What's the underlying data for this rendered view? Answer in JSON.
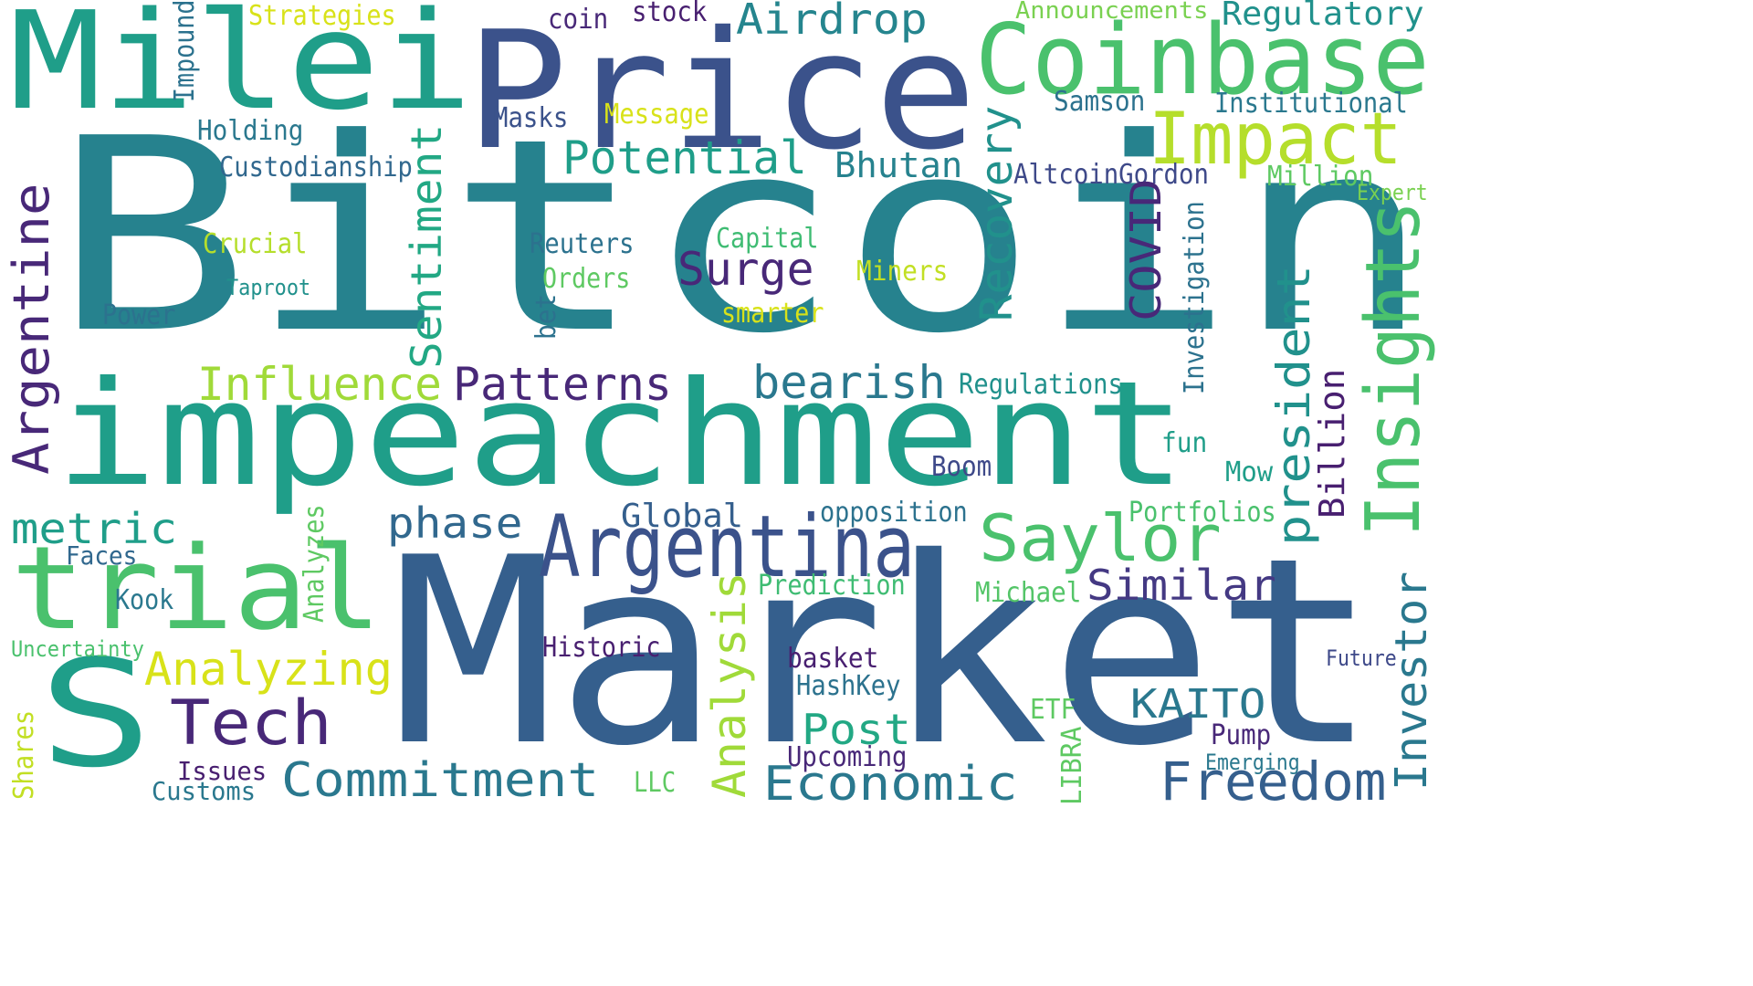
{
  "words": [
    {
      "key": "bitcoin",
      "text": "Bitcoin",
      "color": "#26828e",
      "vertical": false
    },
    {
      "key": "market",
      "text": "Market",
      "color": "#355f8d",
      "vertical": false
    },
    {
      "key": "impeachment",
      "text": "impeachment",
      "color": "#1f9e89",
      "vertical": false
    },
    {
      "key": "price",
      "text": "Price",
      "color": "#3b528b",
      "vertical": false
    },
    {
      "key": "milei",
      "text": "Milei",
      "color": "#1f9e89",
      "vertical": false
    },
    {
      "key": "coinbase",
      "text": "Coinbase",
      "color": "#4ac16d",
      "vertical": false
    },
    {
      "key": "trial",
      "text": "trial",
      "color": "#4ac16d",
      "vertical": false
    },
    {
      "key": "s",
      "text": "S",
      "color": "#1f9e89",
      "vertical": false
    },
    {
      "key": "argentina",
      "text": "Argentina",
      "color": "#3b528b",
      "vertical": false
    },
    {
      "key": "impact",
      "text": "Impact",
      "color": "#b5de2b",
      "vertical": false
    },
    {
      "key": "saylor",
      "text": "Saylor",
      "color": "#4ac16d",
      "vertical": false
    },
    {
      "key": "freedom",
      "text": "Freedom",
      "color": "#355f8d",
      "vertical": false
    },
    {
      "key": "commitment",
      "text": "Commitment",
      "color": "#2a788e",
      "vertical": false
    },
    {
      "key": "economic",
      "text": "Economic",
      "color": "#2a788e",
      "vertical": false
    },
    {
      "key": "tech",
      "text": "Tech",
      "color": "#482878",
      "vertical": false
    },
    {
      "key": "potential",
      "text": "Potential",
      "color": "#1f9e89",
      "vertical": false
    },
    {
      "key": "influence",
      "text": "Influence",
      "color": "#a0da39",
      "vertical": false
    },
    {
      "key": "patterns",
      "text": "Patterns",
      "color": "#482878",
      "vertical": false
    },
    {
      "key": "bearish",
      "text": "bearish",
      "color": "#2a788e",
      "vertical": false
    },
    {
      "key": "analyzing",
      "text": "Analyzing",
      "color": "#d8e219",
      "vertical": false
    },
    {
      "key": "metric",
      "text": "metric",
      "color": "#1f9e89",
      "vertical": false
    },
    {
      "key": "phase",
      "text": "phase",
      "color": "#31688e",
      "vertical": false
    },
    {
      "key": "surge",
      "text": "Surge",
      "color": "#482878",
      "vertical": false
    },
    {
      "key": "airdrop",
      "text": "Airdrop",
      "color": "#25858e",
      "vertical": false
    },
    {
      "key": "regulatory",
      "text": "Regulatory",
      "color": "#21918c",
      "vertical": false
    },
    {
      "key": "bhutan",
      "text": "Bhutan",
      "color": "#26828e",
      "vertical": false
    },
    {
      "key": "similar",
      "text": "Similar",
      "color": "#443983",
      "vertical": false
    },
    {
      "key": "kaito",
      "text": "KAITO",
      "color": "#2a788e",
      "vertical": false
    },
    {
      "key": "post",
      "text": "Post",
      "color": "#22a884",
      "vertical": false
    },
    {
      "key": "global",
      "text": "Global",
      "color": "#355f8d",
      "vertical": false
    },
    {
      "key": "institutional",
      "text": "Institutional",
      "color": "#2a788e",
      "vertical": false
    },
    {
      "key": "holding",
      "text": "Holding",
      "color": "#2a788e",
      "vertical": false
    },
    {
      "key": "custodianship",
      "text": "Custodianship",
      "color": "#31688e",
      "vertical": false
    },
    {
      "key": "masks",
      "text": "Masks",
      "color": "#3b528b",
      "vertical": false
    },
    {
      "key": "message",
      "text": "Message",
      "color": "#d8e219",
      "vertical": false
    },
    {
      "key": "samson",
      "text": "Samson",
      "color": "#2c728e",
      "vertical": false
    },
    {
      "key": "altcoingordon",
      "text": "AltcoinGordon",
      "color": "#3e4989",
      "vertical": false
    },
    {
      "key": "million",
      "text": "Million",
      "color": "#5ec962",
      "vertical": false
    },
    {
      "key": "expert",
      "text": "Expert",
      "color": "#7ad151",
      "vertical": false
    },
    {
      "key": "crucial",
      "text": "Crucial",
      "color": "#b5de2b",
      "vertical": false
    },
    {
      "key": "taproot",
      "text": "Taproot",
      "color": "#21918c",
      "vertical": false
    },
    {
      "key": "power",
      "text": "Power",
      "color": "#2c728e",
      "vertical": false
    },
    {
      "key": "reuters",
      "text": "Reuters",
      "color": "#2c728e",
      "vertical": false
    },
    {
      "key": "orders",
      "text": "Orders",
      "color": "#5ec962",
      "vertical": false
    },
    {
      "key": "capital",
      "text": "Capital",
      "color": "#3fbc73",
      "vertical": false
    },
    {
      "key": "miners",
      "text": "Miners",
      "color": "#c2df23",
      "vertical": false
    },
    {
      "key": "smarter",
      "text": "smarter",
      "color": "#d8e219",
      "vertical": false
    },
    {
      "key": "regulations",
      "text": "Regulations",
      "color": "#21918c",
      "vertical": false
    },
    {
      "key": "fun",
      "text": "fun",
      "color": "#1f9e89",
      "vertical": false
    },
    {
      "key": "mow",
      "text": "Mow",
      "color": "#1f9e89",
      "vertical": false
    },
    {
      "key": "boom",
      "text": "Boom",
      "color": "#3e4989",
      "vertical": false
    },
    {
      "key": "opposition",
      "text": "opposition",
      "color": "#2c728e",
      "vertical": false
    },
    {
      "key": "portfolios",
      "text": "Portfolios",
      "color": "#4ac16d",
      "vertical": false
    },
    {
      "key": "faces",
      "text": "Faces",
      "color": "#31688e",
      "vertical": false
    },
    {
      "key": "kook",
      "text": "Kook",
      "color": "#2a788e",
      "vertical": false
    },
    {
      "key": "uncertainty",
      "text": "Uncertainty",
      "color": "#4ac16d",
      "vertical": false
    },
    {
      "key": "prediction",
      "text": "Prediction",
      "color": "#3fbc73",
      "vertical": false
    },
    {
      "key": "michael",
      "text": "Michael",
      "color": "#54c568",
      "vertical": false
    },
    {
      "key": "historic",
      "text": "Historic",
      "color": "#481f70",
      "vertical": false
    },
    {
      "key": "basket",
      "text": "basket",
      "color": "#481f70",
      "vertical": false
    },
    {
      "key": "hashkey",
      "text": "HashKey",
      "color": "#2c728e",
      "vertical": false
    },
    {
      "key": "future",
      "text": "Future",
      "color": "#3e4989",
      "vertical": false
    },
    {
      "key": "etf",
      "text": "ETF",
      "color": "#5ec962",
      "vertical": false
    },
    {
      "key": "pump",
      "text": "Pump",
      "color": "#482878",
      "vertical": false
    },
    {
      "key": "emerging",
      "text": "Emerging",
      "color": "#2a788e",
      "vertical": false
    },
    {
      "key": "upcoming",
      "text": "Upcoming",
      "color": "#482878",
      "vertical": false
    },
    {
      "key": "issues",
      "text": "Issues",
      "color": "#481f70",
      "vertical": false
    },
    {
      "key": "customs",
      "text": "Customs",
      "color": "#2a788e",
      "vertical": false
    },
    {
      "key": "llc",
      "text": "LLC",
      "color": "#5ec962",
      "vertical": false
    },
    {
      "key": "strategies",
      "text": "Strategies",
      "color": "#d8e219",
      "vertical": false
    },
    {
      "key": "coin",
      "text": "coin",
      "color": "#482878",
      "vertical": false
    },
    {
      "key": "stock",
      "text": "stock",
      "color": "#481f70",
      "vertical": false
    },
    {
      "key": "announcements",
      "text": "Announcements",
      "color": "#7ad151",
      "vertical": false
    },
    {
      "key": "argentine",
      "text": "Argentine",
      "color": "#482878",
      "vertical": true
    },
    {
      "key": "sentiment",
      "text": "Sentiment",
      "color": "#22a884",
      "vertical": true
    },
    {
      "key": "recovery",
      "text": "Recovery",
      "color": "#21918c",
      "vertical": true
    },
    {
      "key": "covid",
      "text": "COVID",
      "color": "#482878",
      "vertical": true
    },
    {
      "key": "investigation",
      "text": "Investigation",
      "color": "#2c728e",
      "vertical": true
    },
    {
      "key": "president",
      "text": "president",
      "color": "#21918c",
      "vertical": true
    },
    {
      "key": "billion",
      "text": "Billion",
      "color": "#481f70",
      "vertical": true
    },
    {
      "key": "insights",
      "text": "Insights",
      "color": "#4ac16d",
      "vertical": true
    },
    {
      "key": "investor",
      "text": "Investor",
      "color": "#2a788e",
      "vertical": true
    },
    {
      "key": "analysis",
      "text": "Analysis",
      "color": "#a0da39",
      "vertical": true
    },
    {
      "key": "analyzes",
      "text": "Analyzes",
      "color": "#5ec962",
      "vertical": true
    },
    {
      "key": "shares",
      "text": "Shares",
      "color": "#c2df23",
      "vertical": true
    },
    {
      "key": "libra",
      "text": "LIBRA",
      "color": "#5ec962",
      "vertical": true
    },
    {
      "key": "impound",
      "text": "Impound",
      "color": "#2c728e",
      "vertical": true
    },
    {
      "key": "bet",
      "text": "bet",
      "color": "#2c728e",
      "vertical": true
    }
  ]
}
